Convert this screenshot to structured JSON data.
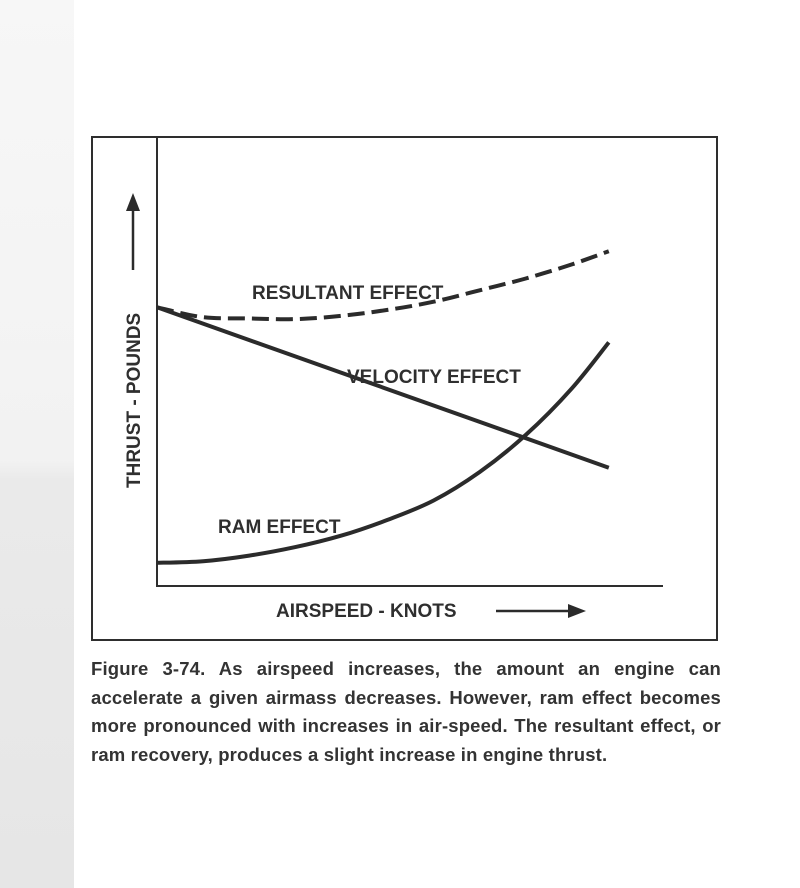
{
  "chart_data": {
    "type": "line",
    "title": "",
    "xlabel": "AIRSPEED - KNOTS",
    "ylabel": "THRUST - POUNDS",
    "x_ticks": [],
    "y_ticks": [],
    "xlim": [
      0,
      100
    ],
    "ylim": [
      0,
      100
    ],
    "grid": false,
    "legend": "none",
    "series": [
      {
        "name": "RESULTANT EFFECT",
        "style": "dashed",
        "x": [
          0,
          10,
          20,
          30,
          40,
          50,
          60,
          70,
          80,
          90,
          98
        ],
        "y": [
          81,
          78,
          77.6,
          77.4,
          78.4,
          80.2,
          82.7,
          86.2,
          89.8,
          94.1,
          98.1
        ]
      },
      {
        "name": "VELOCITY EFFECT",
        "style": "solid",
        "x": [
          0,
          98
        ],
        "y": [
          81,
          32.1
        ]
      },
      {
        "name": "RAM EFFECT",
        "style": "solid",
        "x": [
          0,
          10,
          20,
          30,
          40,
          50,
          60,
          70,
          80,
          90,
          98
        ],
        "y": [
          3.1,
          3.6,
          5.3,
          7.9,
          11.4,
          16.2,
          22.1,
          30.8,
          42.1,
          56.3,
          70.3
        ]
      }
    ],
    "colors": {
      "line": "#2b2b2b"
    }
  },
  "caption": "Figure 3-74. As airspeed increases, the amount an engine can accelerate a given airmass decreases. However, ram effect becomes more pronounced with increases in air-speed. The resultant effect, or ram recovery, produces a slight increase in engine thrust."
}
